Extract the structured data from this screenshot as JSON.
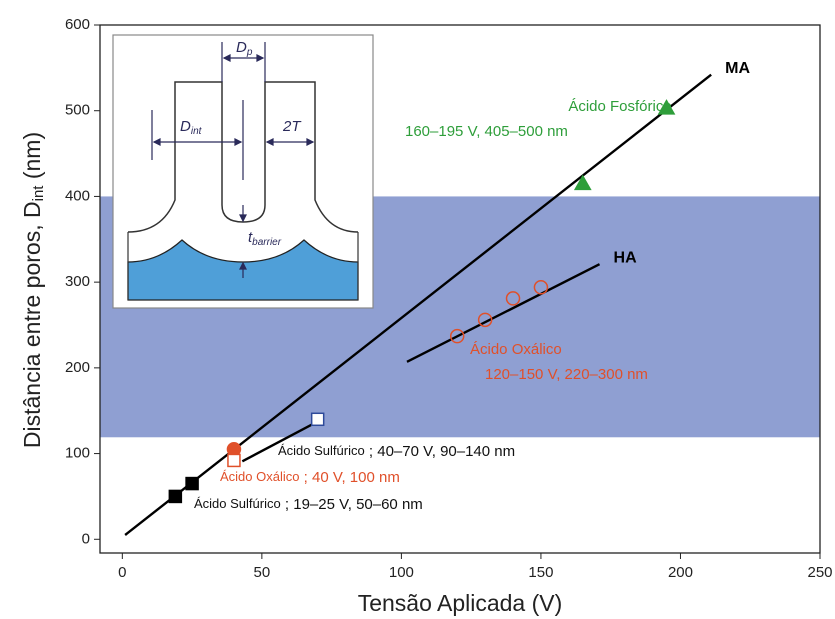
{
  "chart_data": {
    "type": "scatter",
    "x_label": "Tensão Aplicada (V)",
    "y_label": [
      "Distância entre poros, D",
      "int",
      " (nm)"
    ],
    "xlim": [
      -8,
      250
    ],
    "ylim": [
      -16,
      600
    ],
    "xticks": [
      0,
      50,
      100,
      150,
      200,
      250
    ],
    "yticks": [
      0,
      100,
      200,
      300,
      400,
      500,
      600
    ],
    "shaded_range": {
      "ylim": [
        119,
        400
      ],
      "color": "#8f9fd2"
    },
    "lines": [
      {
        "name": "MA",
        "color": "#000000",
        "x": [
          1,
          211
        ],
        "values": [
          5,
          542
        ]
      },
      {
        "name": "HA",
        "color": "#000000",
        "x": [
          102,
          171
        ],
        "values": [
          207,
          321
        ]
      },
      {
        "color": "#000000",
        "x": [
          43,
          68
        ],
        "values": [
          91,
          134
        ]
      }
    ],
    "series": [
      {
        "marker": "square",
        "filled": true,
        "color": "#000000",
        "x": [
          19,
          25
        ],
        "values": [
          50,
          65
        ]
      },
      {
        "marker": "circle",
        "filled": true,
        "color": "#e0502a",
        "x": [
          40
        ],
        "values": [
          105
        ]
      },
      {
        "marker": "square",
        "filled": false,
        "color": "#e0502a",
        "x": [
          40
        ],
        "values": [
          92
        ]
      },
      {
        "marker": "square",
        "filled": false,
        "color": "#2e4a9a",
        "x": [
          70
        ],
        "values": [
          140
        ]
      },
      {
        "marker": "circle",
        "filled": false,
        "color": "#e0502a",
        "x": [
          120,
          130,
          140,
          150
        ],
        "values": [
          237,
          256,
          281,
          294
        ]
      },
      {
        "marker": "triangle",
        "filled": true,
        "color": "#2e9e3a",
        "x": [
          165,
          195
        ],
        "values": [
          415,
          503
        ]
      }
    ],
    "annotations": [
      {
        "color": "#2e9e3a",
        "parts": [
          "Ácido Fosfórico"
        ]
      },
      {
        "color": "#2e9e3a",
        "parts": [
          "160–195 V, 405–500 nm"
        ]
      },
      {
        "color": "#e0502a",
        "parts": [
          "Ácido Oxálico"
        ]
      },
      {
        "color": "#e0502a",
        "parts": [
          "120–150 V, 220–300 nm"
        ]
      },
      {
        "color": "#111111",
        "parts": [
          "Ácido Sulfúrico",
          " ; 40–70 V, 90–140 nm"
        ]
      },
      {
        "color": "#e0502a",
        "parts": [
          "Ácido Oxálico",
          " ; 40 V, 100 nm"
        ]
      },
      {
        "color": "#111111",
        "parts": [
          "Ácido Sulfúrico",
          " ; 19–25 V, 50–60 nm"
        ]
      }
    ]
  },
  "inset": {
    "labels": [
      [
        "D",
        "p"
      ],
      [
        "D",
        "int"
      ],
      [
        "2T",
        ""
      ],
      [
        "t",
        "barrier"
      ]
    ]
  }
}
